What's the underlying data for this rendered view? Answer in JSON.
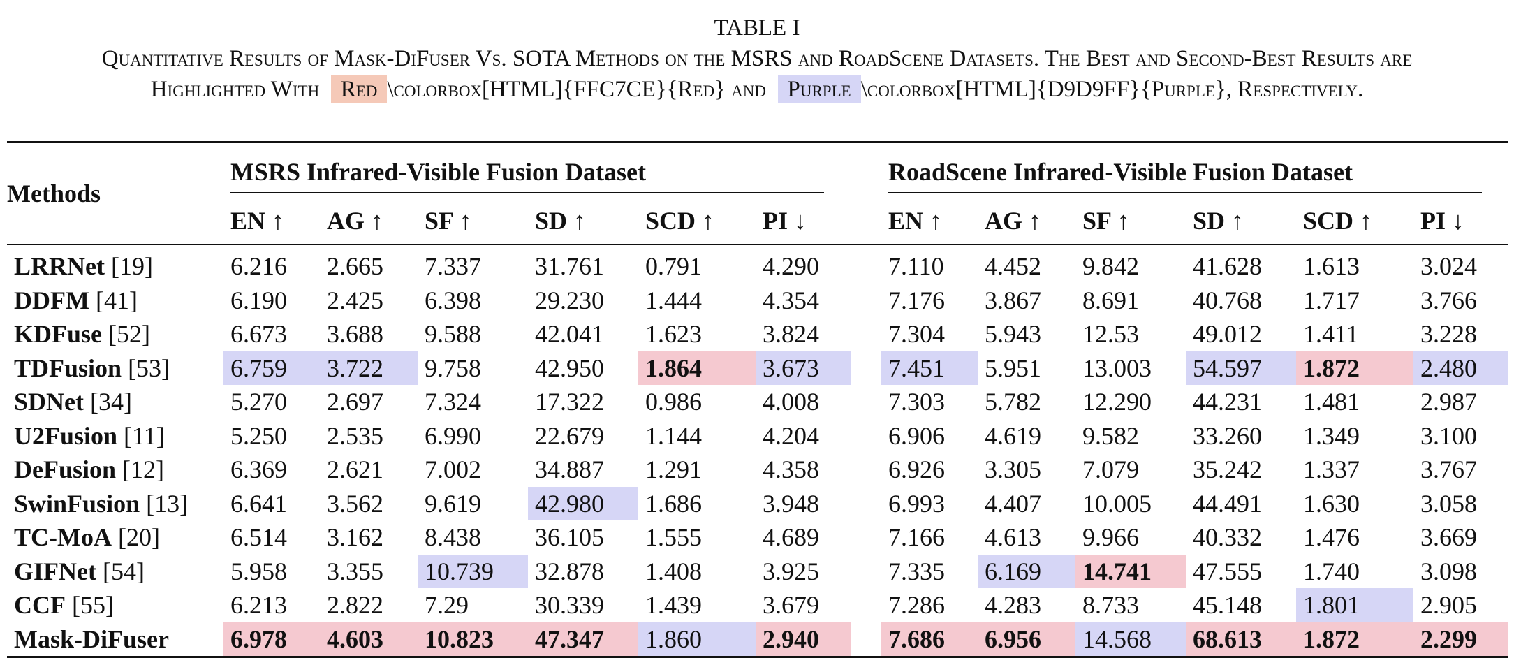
{
  "caption": {
    "label": "TABLE I",
    "line1": "Quantitative Results of Mask-DiFuser Vs. SOTA Methods on the MSRS and RoadScene Datasets. The Best and Second-Best Results are",
    "line2_prefix": "Highlighted With",
    "red_word": "Red",
    "red_code": "\\colorbox[HTML]{FFC7CE}{Red} and",
    "purple_word": "Purple",
    "purple_code": "\\colorbox[HTML]{D9D9FF}{Purple}, Respectively."
  },
  "table": {
    "methods_header": "Methods",
    "datasets": [
      "MSRS Infrared-Visible Fusion Dataset",
      "RoadScene Infrared-Visible Fusion Dataset"
    ],
    "metrics": [
      "EN ↑",
      "AG ↑",
      "SF ↑",
      "SD ↑",
      "SCD ↑",
      "PI ↓"
    ],
    "highlight_colors": {
      "best": "#f5c9d0",
      "second": "#d6d6f6"
    },
    "rows": [
      {
        "name": "LRRNet",
        "ref": "[19]",
        "msrs": [
          "6.216",
          "2.665",
          "7.337",
          "31.761",
          "0.791",
          "4.290"
        ],
        "road": [
          "7.110",
          "4.452",
          "9.842",
          "41.628",
          "1.613",
          "3.024"
        ],
        "msrs_hl": [
          "",
          "",
          "",
          "",
          "",
          ""
        ],
        "road_hl": [
          "",
          "",
          "",
          "",
          "",
          ""
        ]
      },
      {
        "name": "DDFM",
        "ref": "[41]",
        "msrs": [
          "6.190",
          "2.425",
          "6.398",
          "29.230",
          "1.444",
          "4.354"
        ],
        "road": [
          "7.176",
          "3.867",
          "8.691",
          "40.768",
          "1.717",
          "3.766"
        ],
        "msrs_hl": [
          "",
          "",
          "",
          "",
          "",
          ""
        ],
        "road_hl": [
          "",
          "",
          "",
          "",
          "",
          ""
        ]
      },
      {
        "name": "KDFuse",
        "ref": "[52]",
        "msrs": [
          "6.673",
          "3.688",
          "9.588",
          "42.041",
          "1.623",
          "3.824"
        ],
        "road": [
          "7.304",
          "5.943",
          "12.53",
          "49.012",
          "1.411",
          "3.228"
        ],
        "msrs_hl": [
          "",
          "",
          "",
          "",
          "",
          ""
        ],
        "road_hl": [
          "",
          "",
          "",
          "",
          "",
          ""
        ]
      },
      {
        "name": "TDFusion",
        "ref": "[53]",
        "msrs": [
          "6.759",
          "3.722",
          "9.758",
          "42.950",
          "1.864",
          "3.673"
        ],
        "road": [
          "7.451",
          "5.951",
          "13.003",
          "54.597",
          "1.872",
          "2.480"
        ],
        "msrs_hl": [
          "purple",
          "purple",
          "",
          "",
          "red-bold",
          "purple"
        ],
        "road_hl": [
          "purple",
          "",
          "",
          "purple",
          "red-bold",
          "purple"
        ]
      },
      {
        "name": "SDNet",
        "ref": "[34]",
        "msrs": [
          "5.270",
          "2.697",
          "7.324",
          "17.322",
          "0.986",
          "4.008"
        ],
        "road": [
          "7.303",
          "5.782",
          "12.290",
          "44.231",
          "1.481",
          "2.987"
        ],
        "msrs_hl": [
          "",
          "",
          "",
          "",
          "",
          ""
        ],
        "road_hl": [
          "",
          "",
          "",
          "",
          "",
          ""
        ]
      },
      {
        "name": "U2Fusion",
        "ref": "[11]",
        "msrs": [
          "5.250",
          "2.535",
          "6.990",
          "22.679",
          "1.144",
          "4.204"
        ],
        "road": [
          "6.906",
          "4.619",
          "9.582",
          "33.260",
          "1.349",
          "3.100"
        ],
        "msrs_hl": [
          "",
          "",
          "",
          "",
          "",
          ""
        ],
        "road_hl": [
          "",
          "",
          "",
          "",
          "",
          ""
        ]
      },
      {
        "name": "DeFusion",
        "ref": "[12]",
        "msrs": [
          "6.369",
          "2.621",
          "7.002",
          "34.887",
          "1.291",
          "4.358"
        ],
        "road": [
          "6.926",
          "3.305",
          "7.079",
          "35.242",
          "1.337",
          "3.767"
        ],
        "msrs_hl": [
          "",
          "",
          "",
          "",
          "",
          ""
        ],
        "road_hl": [
          "",
          "",
          "",
          "",
          "",
          ""
        ]
      },
      {
        "name": "SwinFusion",
        "ref": "[13]",
        "msrs": [
          "6.641",
          "3.562",
          "9.619",
          "42.980",
          "1.686",
          "3.948"
        ],
        "road": [
          "6.993",
          "4.407",
          "10.005",
          "44.491",
          "1.630",
          "3.058"
        ],
        "msrs_hl": [
          "",
          "",
          "",
          "purple",
          "",
          ""
        ],
        "road_hl": [
          "",
          "",
          "",
          "",
          "",
          ""
        ]
      },
      {
        "name": "TC-MoA",
        "ref": "[20]",
        "msrs": [
          "6.514",
          "3.162",
          "8.438",
          "36.105",
          "1.555",
          "4.689"
        ],
        "road": [
          "7.166",
          "4.613",
          "9.966",
          "40.332",
          "1.476",
          "3.669"
        ],
        "msrs_hl": [
          "",
          "",
          "",
          "",
          "",
          ""
        ],
        "road_hl": [
          "",
          "",
          "",
          "",
          "",
          ""
        ]
      },
      {
        "name": "GIFNet",
        "ref": "[54]",
        "msrs": [
          "5.958",
          "3.355",
          "10.739",
          "32.878",
          "1.408",
          "3.925"
        ],
        "road": [
          "7.335",
          "6.169",
          "14.741",
          "47.555",
          "1.740",
          "3.098"
        ],
        "msrs_hl": [
          "",
          "",
          "purple",
          "",
          "",
          ""
        ],
        "road_hl": [
          "",
          "purple",
          "red-bold",
          "",
          "",
          ""
        ]
      },
      {
        "name": "CCF",
        "ref": "[55]",
        "msrs": [
          "6.213",
          "2.822",
          "7.29",
          "30.339",
          "1.439",
          "3.679"
        ],
        "road": [
          "7.286",
          "4.283",
          "8.733",
          "45.148",
          "1.801",
          "2.905"
        ],
        "msrs_hl": [
          "",
          "",
          "",
          "",
          "",
          ""
        ],
        "road_hl": [
          "",
          "",
          "",
          "",
          "purple",
          ""
        ]
      },
      {
        "name": "Mask-DiFuser",
        "ref": "",
        "msrs": [
          "6.978",
          "4.603",
          "10.823",
          "47.347",
          "1.860",
          "2.940"
        ],
        "road": [
          "7.686",
          "6.956",
          "14.568",
          "68.613",
          "1.872",
          "2.299"
        ],
        "msrs_hl": [
          "red-bold",
          "red-bold",
          "red-bold",
          "red-bold",
          "purple",
          "red-bold"
        ],
        "road_hl": [
          "red-bold",
          "red-bold",
          "purple",
          "red-bold",
          "red-bold",
          "red-bold"
        ]
      }
    ]
  }
}
